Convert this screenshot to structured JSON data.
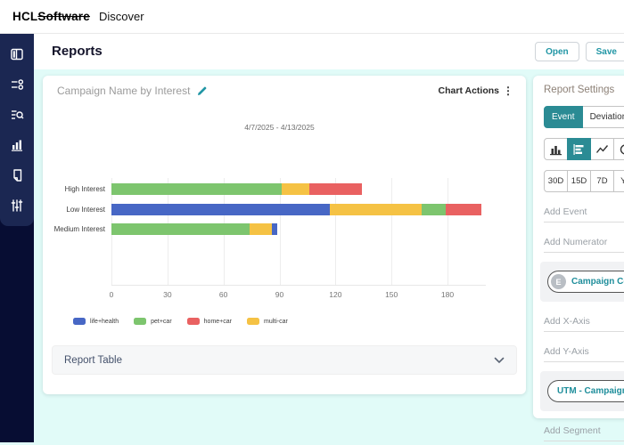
{
  "header": {
    "logo_hcl": "HCL",
    "logo_software": "Software",
    "product": "Discover"
  },
  "toolbar": {
    "title": "Reports",
    "open_label": "Open",
    "save_label": "Save"
  },
  "sidebar": {
    "items": [
      "dashboard",
      "data-list",
      "search-query",
      "bar-chart",
      "document-report",
      "settings-sliders"
    ]
  },
  "chart_card": {
    "title": "Campaign Name by Interest",
    "chart_actions_label": "Chart Actions",
    "report_table_label": "Report Table"
  },
  "chart_data": {
    "type": "bar",
    "orientation": "horizontal",
    "stacked": true,
    "title": "Campaign Name by Interest",
    "date_range": "4/7/2025 - 4/13/2025",
    "categories": [
      "High Interest",
      "Low Interest",
      "Medium Interest"
    ],
    "x_ticks": [
      0,
      30,
      60,
      90,
      120,
      150,
      180
    ],
    "xlim": [
      0,
      200
    ],
    "grid": true,
    "legend_position": "bottom",
    "series_colors": {
      "life+health": "#4767c5",
      "pet+car": "#7dc56e",
      "home+car": "#e96161",
      "multi-car": "#f5c244"
    },
    "legend": [
      "life+health",
      "pet+car",
      "home+car",
      "multi-car"
    ],
    "rows": [
      {
        "category": "High Interest",
        "segments": [
          {
            "series": "pet+car",
            "value": 91
          },
          {
            "series": "multi-car",
            "value": 15
          },
          {
            "series": "home+car",
            "value": 28
          }
        ]
      },
      {
        "category": "Low Interest",
        "segments": [
          {
            "series": "life+health",
            "value": 117
          },
          {
            "series": "multi-car",
            "value": 49
          },
          {
            "series": "pet+car",
            "value": 13
          },
          {
            "series": "home+car",
            "value": 19
          }
        ]
      },
      {
        "category": "Medium Interest",
        "segments": [
          {
            "series": "pet+car",
            "value": 74
          },
          {
            "series": "multi-car",
            "value": 12
          },
          {
            "series": "life+health",
            "value": 3
          }
        ]
      }
    ]
  },
  "settings_panel": {
    "title": "Report Settings",
    "mode_options": [
      "Event",
      "Deviation"
    ],
    "mode_selected": "Event",
    "chart_type_selected": "horizontal-bar-chart",
    "time_ranges": [
      "30D",
      "15D",
      "7D",
      "Ye"
    ],
    "add_event_placeholder": "Add Event",
    "add_numerator_placeholder": "Add Numerator",
    "numerator_chip": {
      "avatar": "E",
      "label": "Campaign Coun"
    },
    "add_xaxis_placeholder": "Add X-Axis",
    "add_yaxis_placeholder": "Add Y-Axis",
    "yaxis_chip": {
      "label": "UTM - Campaign"
    },
    "add_segment_placeholder": "Add Segment"
  },
  "colors": {
    "accent_teal": "#2b8b94",
    "link_teal": "#2196a5",
    "sidebar_navy": "#070d33",
    "background_cyan": "#e1fbf8"
  }
}
